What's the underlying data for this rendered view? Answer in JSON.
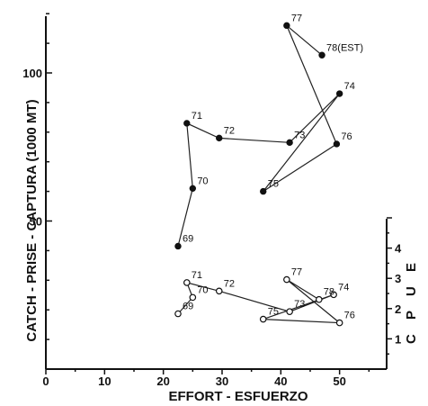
{
  "chart_data": {
    "type": "scatter",
    "xlabel": "EFFORT - ESFUERZO",
    "ylabel_left": "CATCH - PRISE - CAPTURA (1000 MT)",
    "ylabel_right": "C P U E",
    "xlim": [
      0,
      58
    ],
    "ylim_left": [
      0,
      125
    ],
    "ylim_right": [
      0,
      5
    ],
    "x_ticks": [
      "0",
      "10",
      "20",
      "30",
      "40",
      "50"
    ],
    "y_ticks_left": [
      "50",
      "100"
    ],
    "y_ticks_right": [
      "1",
      "2",
      "3",
      "4"
    ],
    "series": [
      {
        "axis": "left",
        "marker": "filled",
        "points": [
          {
            "label": "69",
            "x": 22.5,
            "y": 41.5
          },
          {
            "label": "70",
            "x": 25,
            "y": 61
          },
          {
            "label": "71",
            "x": 24,
            "y": 83
          },
          {
            "label": "72",
            "x": 29.5,
            "y": 78
          },
          {
            "label": "73",
            "x": 41.5,
            "y": 76.5
          },
          {
            "label": "74",
            "x": 50,
            "y": 93
          },
          {
            "label": "75",
            "x": 37,
            "y": 60
          },
          {
            "label": "76",
            "x": 49.5,
            "y": 76
          },
          {
            "label": "77",
            "x": 41,
            "y": 116
          },
          {
            "label": "78(EST)",
            "x": 47,
            "y": 106
          }
        ]
      },
      {
        "axis": "right",
        "marker": "open",
        "points": [
          {
            "label": "69",
            "x": 22.5,
            "y": 1.83
          },
          {
            "label": "70",
            "x": 25,
            "y": 2.37
          },
          {
            "label": "71",
            "x": 24,
            "y": 2.86
          },
          {
            "label": "72",
            "x": 29.5,
            "y": 2.58
          },
          {
            "label": "73",
            "x": 41.5,
            "y": 1.9
          },
          {
            "label": "74",
            "x": 49,
            "y": 2.46
          },
          {
            "label": "75",
            "x": 37,
            "y": 1.65
          },
          {
            "label": "76",
            "x": 50,
            "y": 1.53
          },
          {
            "label": "77",
            "x": 41,
            "y": 2.96
          },
          {
            "label": "78",
            "x": 46.5,
            "y": 2.3
          }
        ]
      }
    ],
    "connect_order": [
      "69",
      "70",
      "71",
      "72",
      "73",
      "74",
      "75",
      "76",
      "77",
      "78"
    ]
  }
}
